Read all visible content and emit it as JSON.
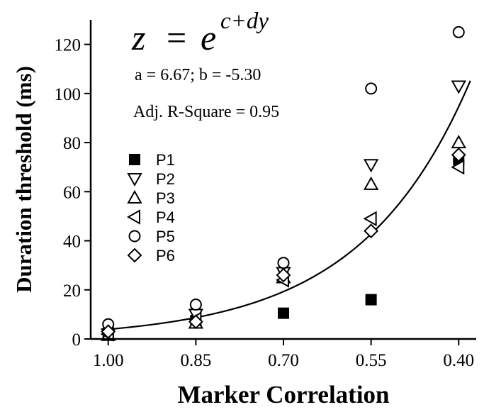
{
  "chart_data": {
    "type": "scatter",
    "xlabel": "Marker Correlation",
    "ylabel": "Duration threshold (ms)",
    "x_reversed": true,
    "xlim": [
      1.03,
      0.37
    ],
    "ylim": [
      0,
      130
    ],
    "x_ticks": [
      1.0,
      0.85,
      0.7,
      0.55,
      0.4
    ],
    "x_tick_labels": [
      "1.00",
      "0.85",
      "0.70",
      "0.55",
      "0.40"
    ],
    "y_ticks": [
      0,
      20,
      40,
      60,
      80,
      100,
      120
    ],
    "y_tick_labels": [
      "0",
      "20",
      "40",
      "60",
      "80",
      "100",
      "120"
    ],
    "grid": false,
    "legend_position": "left-middle",
    "annotations": {
      "equation_z": "z",
      "equation_eq": "=",
      "equation_e": "e",
      "equation_exp": "c+dy",
      "params": "a = 6.67;  b = -5.30",
      "rsquare": "Adj. R-Square = 0.95"
    },
    "fit": {
      "a": 6.67,
      "b": -5.3,
      "x_range": [
        1.0,
        0.38
      ]
    },
    "series": [
      {
        "name": "P1",
        "marker": "filled-square",
        "points": [
          [
            1.0,
            2.2
          ],
          [
            0.85,
            7.5
          ],
          [
            0.7,
            10.5
          ],
          [
            0.55,
            16.0
          ],
          [
            0.4,
            73.0
          ]
        ]
      },
      {
        "name": "P2",
        "marker": "triangle-down",
        "points": [
          [
            1.0,
            2.0
          ],
          [
            0.85,
            10.0
          ],
          [
            0.7,
            27.0
          ],
          [
            0.55,
            71.0
          ],
          [
            0.4,
            103.0
          ]
        ]
      },
      {
        "name": "P3",
        "marker": "triangle-up",
        "points": [
          [
            1.0,
            1.5
          ],
          [
            0.85,
            6.5
          ],
          [
            0.7,
            25.0
          ],
          [
            0.55,
            63.0
          ],
          [
            0.4,
            80.0
          ]
        ]
      },
      {
        "name": "P4",
        "marker": "triangle-left",
        "points": [
          [
            1.0,
            2.0
          ],
          [
            0.85,
            8.0
          ],
          [
            0.7,
            24.0
          ],
          [
            0.55,
            49.0
          ],
          [
            0.4,
            70.0
          ]
        ]
      },
      {
        "name": "P5",
        "marker": "circle",
        "points": [
          [
            1.0,
            6.0
          ],
          [
            0.85,
            14.0
          ],
          [
            0.7,
            31.0
          ],
          [
            0.55,
            102.0
          ],
          [
            0.4,
            125.0
          ]
        ]
      },
      {
        "name": "P6",
        "marker": "diamond",
        "points": [
          [
            1.0,
            3.0
          ],
          [
            0.85,
            7.0
          ],
          [
            0.7,
            26.0
          ],
          [
            0.55,
            44.0
          ],
          [
            0.4,
            75.0
          ]
        ]
      }
    ]
  }
}
